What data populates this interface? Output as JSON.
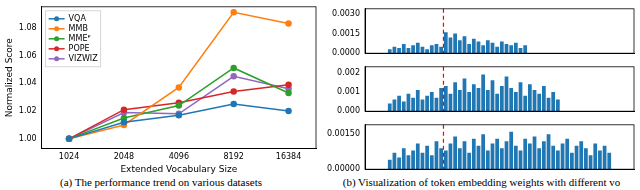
{
  "chart_data": [
    {
      "type": "line",
      "title": "(a) The performance trend on various datasets",
      "x_label": "Extended Vocabulary Size",
      "y_label": "Normalized Score",
      "categories": [
        "1024",
        "2048",
        "4096",
        "8192",
        "16384"
      ],
      "series": [
        {
          "name": "VQA",
          "color": "#1f77b4",
          "marker": "circle",
          "values": [
            1.0,
            1.012,
            1.017,
            1.025,
            1.02
          ]
        },
        {
          "name": "MMB",
          "color": "#ff7f0e",
          "marker": "circle",
          "values": [
            1.0,
            1.01,
            1.037,
            1.091,
            1.083
          ]
        },
        {
          "name": "MMEᴾ",
          "color": "#2ca02c",
          "marker": "circle",
          "values": [
            1.0,
            1.015,
            1.024,
            1.051,
            1.033
          ]
        },
        {
          "name": "POPE",
          "color": "#d62728",
          "marker": "circle",
          "values": [
            1.0,
            1.021,
            1.026,
            1.034,
            1.039
          ]
        },
        {
          "name": "VIZWIZ",
          "color": "#9467bd",
          "marker": "circle",
          "values": [
            1.0,
            1.019,
            1.018,
            1.045,
            1.036
          ]
        }
      ],
      "ylim": [
        0.993,
        1.095
      ],
      "yticks": [
        {
          "value": 1.0,
          "label": "1.00"
        },
        {
          "value": 1.02,
          "label": "1.02"
        },
        {
          "value": 1.04,
          "label": "1.04"
        },
        {
          "value": 1.06,
          "label": "1.06"
        },
        {
          "value": 1.08,
          "label": "1.08"
        }
      ],
      "grid": false,
      "legend": "upper left"
    },
    {
      "type": "bar",
      "title": "(b) Visualization of token embedding weights with different vo",
      "x": [
        1,
        2,
        3,
        4,
        5,
        6,
        7,
        8,
        9,
        10,
        11,
        12,
        13,
        14,
        15,
        16,
        17,
        18,
        19,
        20,
        21,
        22,
        23,
        24,
        25,
        26,
        27,
        28,
        29,
        30
      ],
      "values": [
        0.0003,
        0.0005,
        0.0004,
        0.0007,
        0.0004,
        0.0006,
        0.0008,
        0.0005,
        0.0003,
        0.0006,
        0.0007,
        0.0005,
        0.0016,
        0.0012,
        0.0015,
        0.001,
        0.0013,
        0.0007,
        0.0011,
        0.0009,
        0.0006,
        0.001,
        0.0008,
        0.0005,
        0.0009,
        0.0007,
        0.0006,
        0.0008,
        0.0004,
        0.0006
      ],
      "color": "#1f77b4",
      "xlim": [
        0.5,
        48.5
      ],
      "ylim": [
        0,
        0.0034
      ],
      "yticks": [
        {
          "value": 0,
          "label": "0.0000"
        },
        {
          "value": 0.0015,
          "label": "0.0015"
        },
        {
          "value": 0.003,
          "label": "0.0030"
        }
      ],
      "vline": {
        "x": 12.5,
        "color": "#ff0000",
        "line_style": "dashed"
      },
      "grid": false,
      "tick_labels": "y"
    },
    {
      "type": "bar",
      "x": [
        1,
        2,
        3,
        4,
        5,
        6,
        7,
        8,
        9,
        10,
        11,
        12,
        13,
        14,
        15,
        16,
        17,
        18,
        19,
        20,
        21,
        22,
        23,
        24,
        25,
        26,
        27,
        28,
        29,
        30,
        31,
        32,
        33,
        34,
        35,
        36,
        37
      ],
      "values": [
        0.0004,
        0.0006,
        0.0008,
        0.0005,
        0.0009,
        0.0007,
        0.0011,
        0.0006,
        0.0008,
        0.001,
        0.0007,
        0.0012,
        0.0013,
        0.0009,
        0.0015,
        0.0011,
        0.0017,
        0.001,
        0.0014,
        0.0012,
        0.0019,
        0.0011,
        0.0016,
        0.0009,
        0.0013,
        0.0018,
        0.0012,
        0.001,
        0.0015,
        0.0008,
        0.0014,
        0.0011,
        0.0009,
        0.0013,
        0.0007,
        0.001,
        0.0006
      ],
      "color": "#1f77b4",
      "xlim": [
        0.5,
        48.5
      ],
      "ylim": [
        0,
        0.0023
      ],
      "yticks": [
        {
          "value": 0,
          "label": "0.000"
        },
        {
          "value": 0.001,
          "label": "0.001"
        },
        {
          "value": 0.002,
          "label": "0.002"
        }
      ],
      "vline": {
        "x": 12.5,
        "color": "#ff0000",
        "line_style": "dashed"
      },
      "grid": false,
      "tick_labels": "y"
    },
    {
      "type": "bar",
      "x": [
        1,
        2,
        3,
        4,
        5,
        6,
        7,
        8,
        9,
        10,
        11,
        12,
        13,
        14,
        15,
        16,
        17,
        18,
        19,
        20,
        21,
        22,
        23,
        24,
        25,
        26,
        27,
        28,
        29,
        30,
        31,
        32,
        33,
        34,
        35,
        36,
        37,
        38,
        39,
        40,
        41,
        42,
        43,
        44,
        45,
        46,
        47,
        48
      ],
      "values": [
        0.0004,
        0.0007,
        0.0005,
        0.0009,
        0.0006,
        0.0008,
        0.0011,
        0.0007,
        0.001,
        0.0006,
        0.0012,
        0.0009,
        0.0008,
        0.0011,
        0.0014,
        0.0009,
        0.0012,
        0.0007,
        0.0013,
        0.001,
        0.0015,
        0.0008,
        0.0011,
        0.0013,
        0.0009,
        0.0012,
        0.0016,
        0.001,
        0.0008,
        0.0013,
        0.0011,
        0.0014,
        0.0009,
        0.0012,
        0.0015,
        0.001,
        0.0008,
        0.0011,
        0.0013,
        0.0007,
        0.001,
        0.0012,
        0.0009,
        0.0006,
        0.0011,
        0.0008,
        0.001,
        0.0007
      ],
      "color": "#1f77b4",
      "xlim": [
        0.5,
        48.5
      ],
      "ylim": [
        0,
        0.0019
      ],
      "yticks": [
        {
          "value": 0,
          "label": "0.00000"
        },
        {
          "value": 0.0015,
          "label": "0.00150"
        }
      ],
      "vline": {
        "x": 12.5,
        "color": "#ff0000",
        "line_style": "dashed"
      },
      "grid": false,
      "tick_labels": "y"
    }
  ]
}
